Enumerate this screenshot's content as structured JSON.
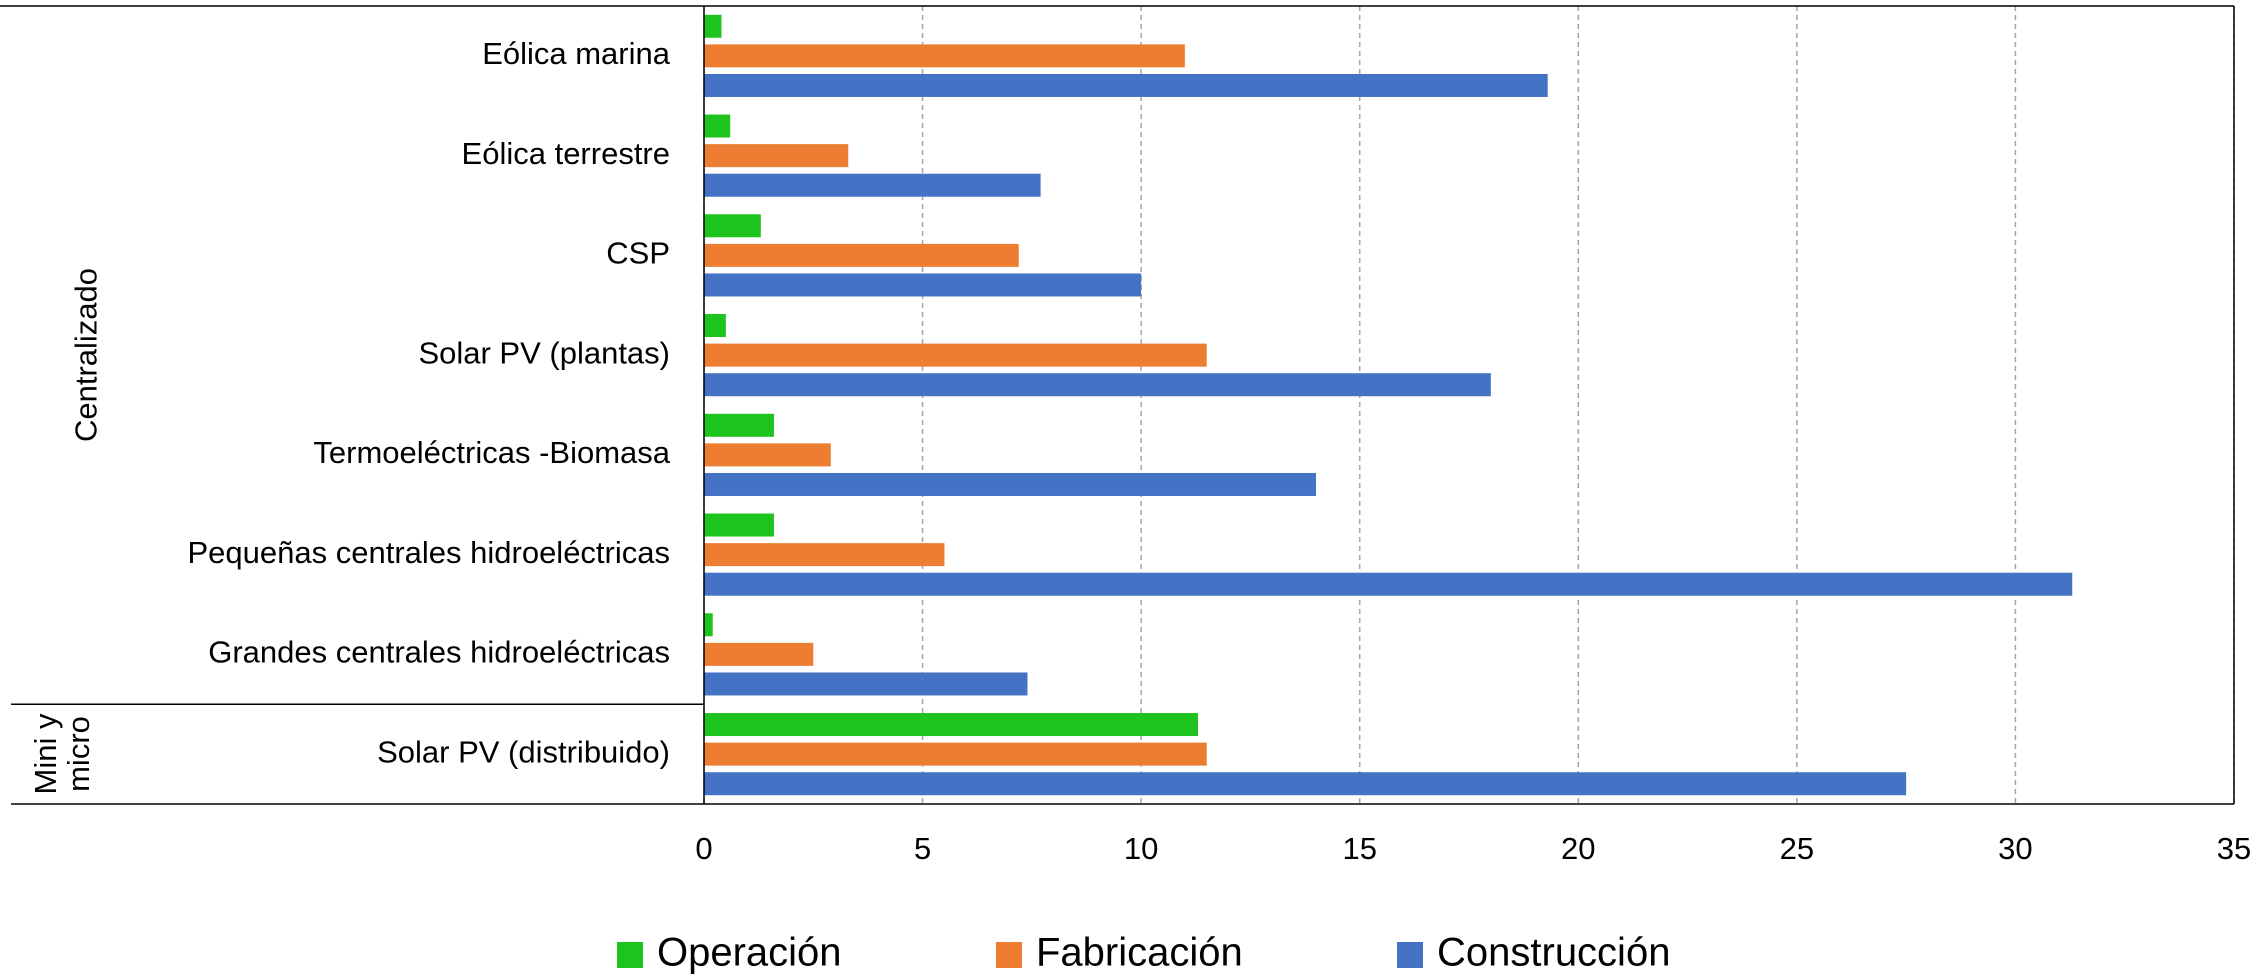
{
  "chart_data": {
    "type": "barh",
    "categories": [
      "Eólica marina",
      "Eólica terrestre",
      "CSP",
      "Solar PV (plantas)",
      "Termoeléctricas -Biomasa",
      "Pequeñas centrales hidroeléctricas",
      "Grandes centrales hidroeléctricas",
      "Solar PV (distribuido)"
    ],
    "group_labels": [
      "Centralizado",
      "Mini y micro"
    ],
    "series": [
      {
        "name": "Operación",
        "color": "#1ec41e",
        "values": [
          0.4,
          0.6,
          1.3,
          0.5,
          1.6,
          1.6,
          0.2,
          11.3
        ]
      },
      {
        "name": "Fabricación",
        "color": "#ed7d31",
        "values": [
          11.0,
          3.3,
          7.2,
          11.5,
          2.9,
          5.5,
          2.5,
          11.5
        ]
      },
      {
        "name": "Construcción",
        "color": "#4472c4",
        "values": [
          19.3,
          7.7,
          10.0,
          18.0,
          14.0,
          31.3,
          7.4,
          27.5
        ]
      }
    ],
    "xlim": [
      0,
      35
    ],
    "xticks": [
      0,
      5,
      10,
      15,
      20,
      25,
      30,
      35
    ],
    "grid": true,
    "legend": "bottom"
  }
}
